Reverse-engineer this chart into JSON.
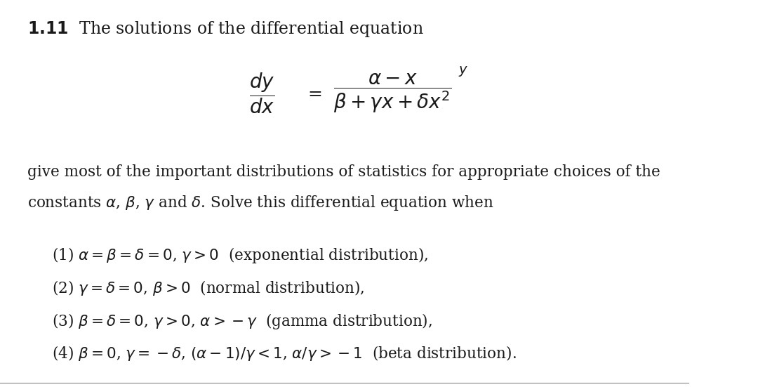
{
  "background_color": "#ffffff",
  "title_bold": "1.11",
  "title_text": "  The solutions of the differential equation",
  "equation_dy_dx": "\\frac{dy}{dx}",
  "equation_equals": "=",
  "equation_rhs": "\\frac{\\alpha - x}{\\beta + \\gamma x + \\delta x^2}",
  "equation_y_exp": "y",
  "body_line1": "give most of the important distributions of statistics for appropriate choices of the",
  "body_line2": "constants $\\alpha$, $\\beta$, $\\gamma$ and $\\delta$. Solve this differential equation when",
  "item1": "(1) $\\alpha = \\beta = \\delta = 0$, $\\gamma > 0$  (exponential distribution),",
  "item2": "(2) $\\gamma = \\delta = 0$, $\\beta > 0$  (normal distribution),",
  "item3": "(3) $\\beta = \\delta = 0$, $\\gamma > 0$, $\\alpha > -\\gamma$  (gamma distribution),",
  "item4": "(4) $\\beta = 0$, $\\gamma = -\\delta$, $(\\alpha - 1)/\\gamma < 1$, $\\alpha/\\gamma > -1$  (beta distribution).",
  "font_size_title": 17,
  "font_size_body": 15.5,
  "font_size_items": 15.5,
  "font_size_eq": 18,
  "text_color": "#1a1a1a"
}
